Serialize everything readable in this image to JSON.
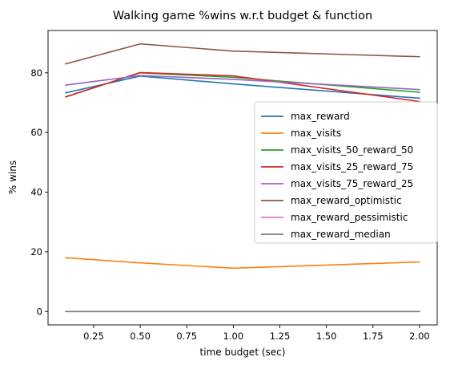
{
  "chart_data": {
    "type": "line",
    "title": "Walking game %wins w.r.t budget & function",
    "xlabel": "time budget (sec)",
    "ylabel": "% wins",
    "x": [
      0.1,
      0.5,
      1.0,
      2.0
    ],
    "xlim": [
      0.005,
      2.095
    ],
    "ylim": [
      -4.5,
      94.2
    ],
    "xticks": [
      0.25,
      0.5,
      0.75,
      1.0,
      1.25,
      1.5,
      1.75,
      2.0
    ],
    "xtick_labels": [
      "0.25",
      "0.50",
      "0.75",
      "1.00",
      "1.25",
      "1.50",
      "1.75",
      "2.00"
    ],
    "yticks": [
      0,
      20,
      40,
      60,
      80
    ],
    "ytick_labels": [
      "0",
      "20",
      "40",
      "60",
      "80"
    ],
    "grid": false,
    "legend_position": "center-right",
    "series": [
      {
        "name": "max_reward",
        "color": "#1f77b4",
        "values": [
          73.3,
          78.9,
          76.3,
          71.5
        ]
      },
      {
        "name": "max_visits",
        "color": "#ff7f0e",
        "values": [
          18.0,
          16.3,
          14.5,
          16.6
        ]
      },
      {
        "name": "max_visits_50_reward_50",
        "color": "#2ca02c",
        "values": [
          72.0,
          80.0,
          78.5,
          73.5
        ]
      },
      {
        "name": "max_visits_25_reward_75",
        "color": "#d62728",
        "values": [
          71.9,
          80.1,
          79.0,
          70.4
        ]
      },
      {
        "name": "max_visits_75_reward_25",
        "color": "#9467bd",
        "values": [
          75.9,
          79.1,
          77.8,
          74.4
        ]
      },
      {
        "name": "max_reward_optimistic",
        "color": "#8c564b",
        "values": [
          83.0,
          89.7,
          87.3,
          85.4
        ]
      },
      {
        "name": "max_reward_pessimistic",
        "color": "#e377c2",
        "values": [
          0,
          0,
          0,
          0
        ]
      },
      {
        "name": "max_reward_median",
        "color": "#7f7f7f",
        "values": [
          0,
          0,
          0,
          0
        ]
      }
    ]
  }
}
